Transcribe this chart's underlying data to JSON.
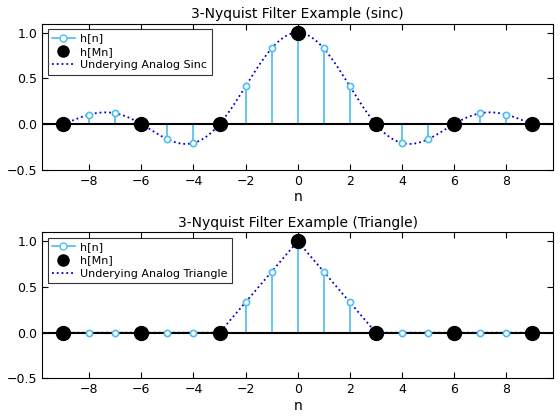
{
  "M": 3,
  "n_range": [
    -9,
    9
  ],
  "title1": "3-Nyquist Filter Example (sinc)",
  "title2": "3-Nyquist Filter Example (Triangle)",
  "xlabel": "n",
  "legend1": [
    "h[n]",
    "h[Mn]",
    "Underying Analog Sinc"
  ],
  "legend2": [
    "h[n]",
    "h[Mn]",
    "Underying Analog Triangle"
  ],
  "ylim": [
    -0.5,
    1.1
  ],
  "yticks": [
    -0.5,
    0,
    0.5,
    1
  ],
  "xticks": [
    -8,
    -6,
    -4,
    -2,
    0,
    2,
    4,
    6,
    8
  ],
  "xlim": [
    -9.8,
    9.8
  ],
  "stem_color": "#4DBEEE",
  "analog_color": "#0000CD",
  "Mn_color": "black",
  "figsize": [
    5.6,
    4.2
  ],
  "dpi": 100
}
